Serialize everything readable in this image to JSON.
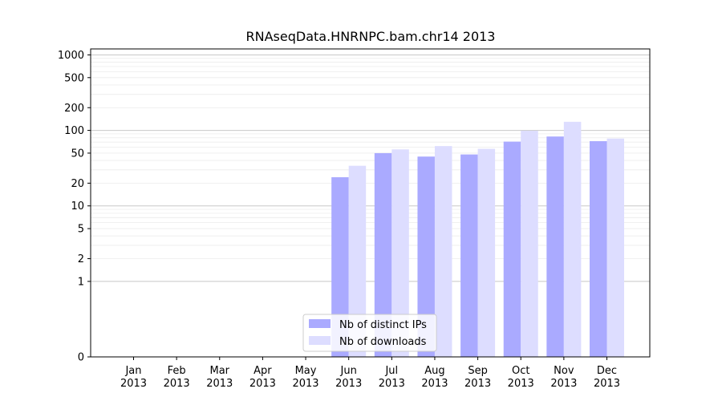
{
  "chart_data": {
    "type": "bar",
    "title": "RNAseqData.HNRNPC.bam.chr14 2013",
    "xlabel": "",
    "ylabel": "",
    "y_scale": "symlog",
    "ylim": [
      0,
      1200
    ],
    "y_ticks": [
      0,
      1,
      2,
      5,
      10,
      20,
      50,
      100,
      200,
      500,
      1000
    ],
    "y_tick_labels": [
      "0",
      "1",
      "2",
      "5",
      "10",
      "20",
      "50",
      "100",
      "200",
      "500",
      "1000"
    ],
    "grid": true,
    "legend_position": "bottom-center",
    "categories": [
      {
        "month": "Jan",
        "year": "2013"
      },
      {
        "month": "Feb",
        "year": "2013"
      },
      {
        "month": "Mar",
        "year": "2013"
      },
      {
        "month": "Apr",
        "year": "2013"
      },
      {
        "month": "May",
        "year": "2013"
      },
      {
        "month": "Jun",
        "year": "2013"
      },
      {
        "month": "Jul",
        "year": "2013"
      },
      {
        "month": "Aug",
        "year": "2013"
      },
      {
        "month": "Sep",
        "year": "2013"
      },
      {
        "month": "Oct",
        "year": "2013"
      },
      {
        "month": "Nov",
        "year": "2013"
      },
      {
        "month": "Dec",
        "year": "2013"
      }
    ],
    "series": [
      {
        "name": "Nb of distinct IPs",
        "color": "#aaaaff",
        "values": [
          0,
          0,
          0,
          0,
          0,
          24,
          50,
          45,
          48,
          71,
          83,
          72
        ]
      },
      {
        "name": "Nb of downloads",
        "color": "#ddddff",
        "values": [
          0,
          0,
          0,
          0,
          0,
          34,
          56,
          62,
          57,
          99,
          130,
          78
        ]
      }
    ]
  }
}
